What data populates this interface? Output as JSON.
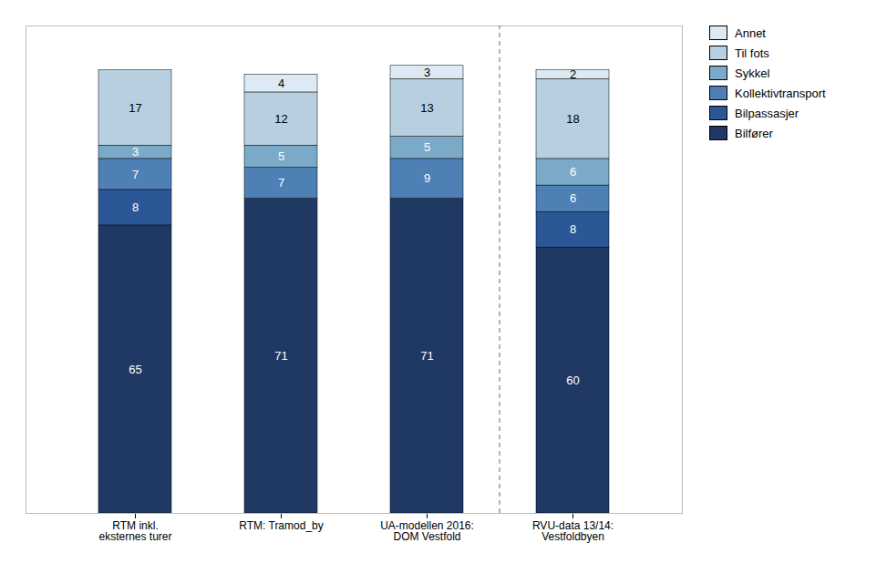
{
  "chart_data": {
    "type": "bar",
    "stacked": true,
    "categories": [
      "RTM inkl.\neksternes turer",
      "RTM: Tramod_by",
      "UA-modellen 2016:\nDOM Vestfold",
      "RVU-data 13/14:\nVestfoldbyen"
    ],
    "series": [
      {
        "name": "Bilfører",
        "color": "#1f3864",
        "values": [
          65,
          71,
          71,
          60
        ]
      },
      {
        "name": "Bilpassasjer",
        "color": "#2b5797",
        "values": [
          8,
          0,
          0,
          8
        ]
      },
      {
        "name": "Kollektivtransport",
        "color": "#4e7fb5",
        "values": [
          7,
          7,
          9,
          6
        ]
      },
      {
        "name": "Sykkel",
        "color": "#7aaac8",
        "values": [
          3,
          5,
          5,
          6
        ]
      },
      {
        "name": "Til fots",
        "color": "#b8cfe0",
        "values": [
          17,
          12,
          13,
          18
        ]
      },
      {
        "name": "Annet",
        "color": "#ddeaf4",
        "values": [
          0,
          4,
          3,
          2
        ]
      }
    ],
    "ylim": [
      0,
      110
    ],
    "tick_labels": "x",
    "data_labels": true,
    "legend": "right",
    "grid": false
  }
}
